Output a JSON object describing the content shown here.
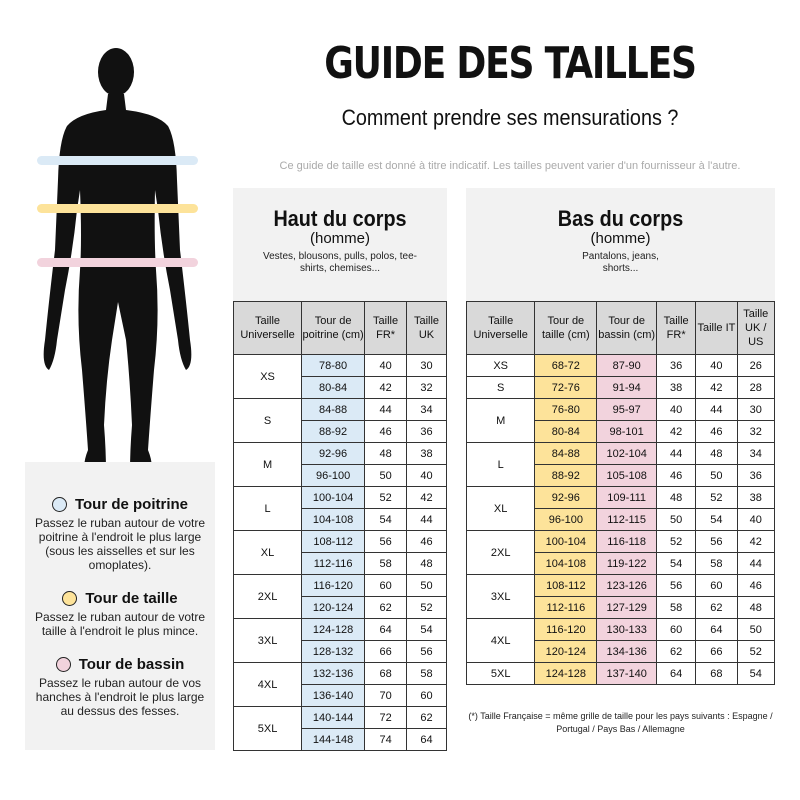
{
  "header": {
    "title": "GUIDE DES TAILLES",
    "subtitle": "Comment prendre ses mensurations ?",
    "note": "Ce guide de taille est donné à titre indicatif. Les tailles peuvent varier d'un fournisseur à l'autre."
  },
  "colors": {
    "chest": "#dbeaf6",
    "waist": "#fde39a",
    "hips": "#f2d3dd",
    "panel": "#f2f2f2",
    "header_cell": "#d9d9d9"
  },
  "legend": [
    {
      "title": "Tour de poitrine",
      "text": "Passez le ruban autour de votre poitrine à l'endroit le plus large (sous les aisselles et sur les omoplates).",
      "color": "#dbeaf6"
    },
    {
      "title": "Tour de taille",
      "text": "Passez le ruban autour de votre taille à l'endroit le plus mince.",
      "color": "#fde39a"
    },
    {
      "title": "Tour de bassin",
      "text": "Passez le ruban autour de vos hanches à l'endroit le plus large au dessus des fesses.",
      "color": "#f2d3dd"
    }
  ],
  "upper": {
    "title": "Haut du corps",
    "subtitle": "(homme)",
    "desc": "Vestes, blousons, pulls, polos, tee-shirts, chemises...",
    "headers": [
      "Taille Universelle",
      "Tour de poitrine (cm)",
      "Taille FR*",
      "Taille UK"
    ],
    "groups": [
      {
        "size": "XS",
        "rows": [
          [
            "78-80",
            "40",
            "30"
          ],
          [
            "80-84",
            "42",
            "32"
          ]
        ]
      },
      {
        "size": "S",
        "rows": [
          [
            "84-88",
            "44",
            "34"
          ],
          [
            "88-92",
            "46",
            "36"
          ]
        ]
      },
      {
        "size": "M",
        "rows": [
          [
            "92-96",
            "48",
            "38"
          ],
          [
            "96-100",
            "50",
            "40"
          ]
        ]
      },
      {
        "size": "L",
        "rows": [
          [
            "100-104",
            "52",
            "42"
          ],
          [
            "104-108",
            "54",
            "44"
          ]
        ]
      },
      {
        "size": "XL",
        "rows": [
          [
            "108-112",
            "56",
            "46"
          ],
          [
            "112-116",
            "58",
            "48"
          ]
        ]
      },
      {
        "size": "2XL",
        "rows": [
          [
            "116-120",
            "60",
            "50"
          ],
          [
            "120-124",
            "62",
            "52"
          ]
        ]
      },
      {
        "size": "3XL",
        "rows": [
          [
            "124-128",
            "64",
            "54"
          ],
          [
            "128-132",
            "66",
            "56"
          ]
        ]
      },
      {
        "size": "4XL",
        "rows": [
          [
            "132-136",
            "68",
            "58"
          ],
          [
            "136-140",
            "70",
            "60"
          ]
        ]
      },
      {
        "size": "5XL",
        "rows": [
          [
            "140-144",
            "72",
            "62"
          ],
          [
            "144-148",
            "74",
            "64"
          ]
        ]
      }
    ]
  },
  "lower": {
    "title": "Bas du corps",
    "subtitle": "(homme)",
    "desc": "Pantalons, jeans, shorts...",
    "headers": [
      "Taille Universelle",
      "Tour de taille (cm)",
      "Tour de bassin (cm)",
      "Taille FR*",
      "Taille IT",
      "Taille UK / US"
    ],
    "groups": [
      {
        "size": "XS",
        "rows": [
          [
            "68-72",
            "87-90",
            "36",
            "40",
            "26"
          ]
        ]
      },
      {
        "size": "S",
        "rows": [
          [
            "72-76",
            "91-94",
            "38",
            "42",
            "28"
          ]
        ]
      },
      {
        "size": "M",
        "rows": [
          [
            "76-80",
            "95-97",
            "40",
            "44",
            "30"
          ],
          [
            "80-84",
            "98-101",
            "42",
            "46",
            "32"
          ]
        ]
      },
      {
        "size": "L",
        "rows": [
          [
            "84-88",
            "102-104",
            "44",
            "48",
            "34"
          ],
          [
            "88-92",
            "105-108",
            "46",
            "50",
            "36"
          ]
        ]
      },
      {
        "size": "XL",
        "rows": [
          [
            "92-96",
            "109-111",
            "48",
            "52",
            "38"
          ],
          [
            "96-100",
            "112-115",
            "50",
            "54",
            "40"
          ]
        ]
      },
      {
        "size": "2XL",
        "rows": [
          [
            "100-104",
            "116-118",
            "52",
            "56",
            "42"
          ],
          [
            "104-108",
            "119-122",
            "54",
            "58",
            "44"
          ]
        ]
      },
      {
        "size": "3XL",
        "rows": [
          [
            "108-112",
            "123-126",
            "56",
            "60",
            "46"
          ],
          [
            "112-116",
            "127-129",
            "58",
            "62",
            "48"
          ]
        ]
      },
      {
        "size": "4XL",
        "rows": [
          [
            "116-120",
            "130-133",
            "60",
            "64",
            "50"
          ],
          [
            "120-124",
            "134-136",
            "62",
            "66",
            "52"
          ]
        ]
      },
      {
        "size": "5XL",
        "rows": [
          [
            "124-128",
            "137-140",
            "64",
            "68",
            "54"
          ]
        ]
      }
    ],
    "footnote": "(*) Taille Française = même grille de taille pour les pays suivants : Espagne / Portugal / Pays Bas / Allemagne"
  }
}
